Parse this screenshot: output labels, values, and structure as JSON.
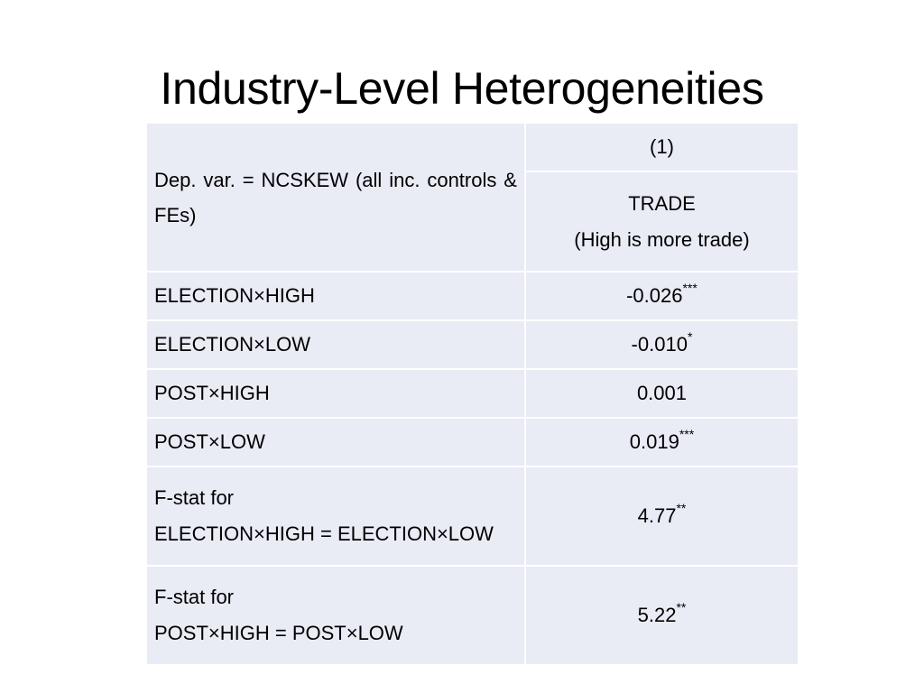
{
  "slide": {
    "title": "Industry-Level Heterogeneities"
  },
  "table": {
    "header_label": "Dep. var. = NCSKEW (all inc. controls & FEs)",
    "column_number": "(1)",
    "column_name_line1": "TRADE",
    "column_name_line2": "(High is more trade)",
    "rows": [
      {
        "label": "ELECTION×HIGH",
        "value": "-0.026",
        "stars": "***"
      },
      {
        "label": "ELECTION×LOW",
        "value": "-0.010",
        "stars": "*"
      },
      {
        "label": "POST×HIGH",
        "value": "0.001",
        "stars": ""
      },
      {
        "label": "POST×LOW",
        "value": "0.019",
        "stars": "***"
      }
    ],
    "fstats": [
      {
        "label_line1": "F-stat for",
        "label_line2": "ELECTION×HIGH = ELECTION×LOW",
        "value": "4.77",
        "stars": "**"
      },
      {
        "label_line1": "F-stat for",
        "label_line2": "POST×HIGH = POST×LOW",
        "value": "5.22",
        "stars": "**"
      }
    ]
  }
}
